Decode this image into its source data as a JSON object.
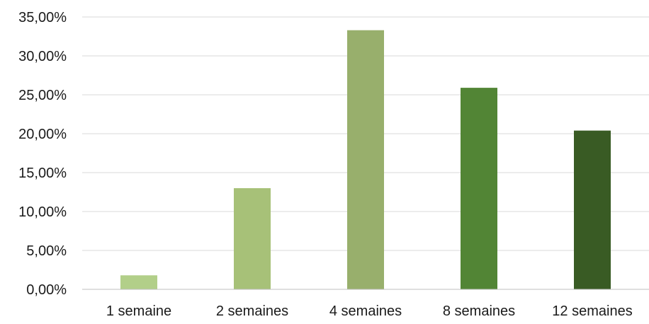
{
  "chart_data": {
    "type": "bar",
    "categories": [
      "1 semaine",
      "2 semaines",
      "4 semaines",
      "8 semaines",
      "12 semaines"
    ],
    "values": [
      1.8,
      13.0,
      33.3,
      25.9,
      20.4
    ],
    "colors": [
      "#b2cf89",
      "#a7c178",
      "#98af6c",
      "#528535",
      "#395b24"
    ],
    "title": "",
    "xlabel": "",
    "ylabel": "",
    "ylim": [
      0,
      35
    ],
    "y_ticks": [
      0,
      5,
      10,
      15,
      20,
      25,
      30,
      35
    ],
    "y_tick_labels": [
      "0,00%",
      "5,00%",
      "10,00%",
      "15,00%",
      "20,00%",
      "25,00%",
      "30,00%",
      "35,00%"
    ],
    "grid": true,
    "legend": "none"
  }
}
